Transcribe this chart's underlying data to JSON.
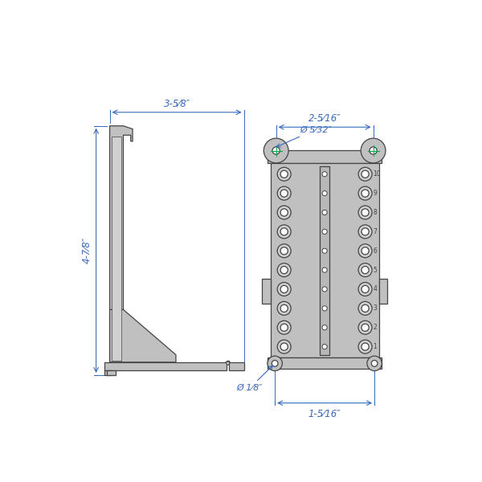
{
  "bg_color": "#ffffff",
  "fill_color": "#c0c0c0",
  "fill_light": "#d0d0d0",
  "fill_dark": "#aaaaaa",
  "stroke_color": "#666666",
  "stroke_dark": "#444444",
  "dim_color": "#3a6abf",
  "green_color": "#00aa44",
  "figsize": [
    6.0,
    6.0
  ],
  "dpi": 100,
  "dim_35_8": "3-5⁄8″",
  "dim_25_16": "2-5⁄16″",
  "dim_47_8": "4-7⁄8″",
  "dim_d5_32": "Ø 5⁄32″",
  "dim_d1_8": "Ø 1⁄8″",
  "dim_15_16": "1-5⁄16″"
}
